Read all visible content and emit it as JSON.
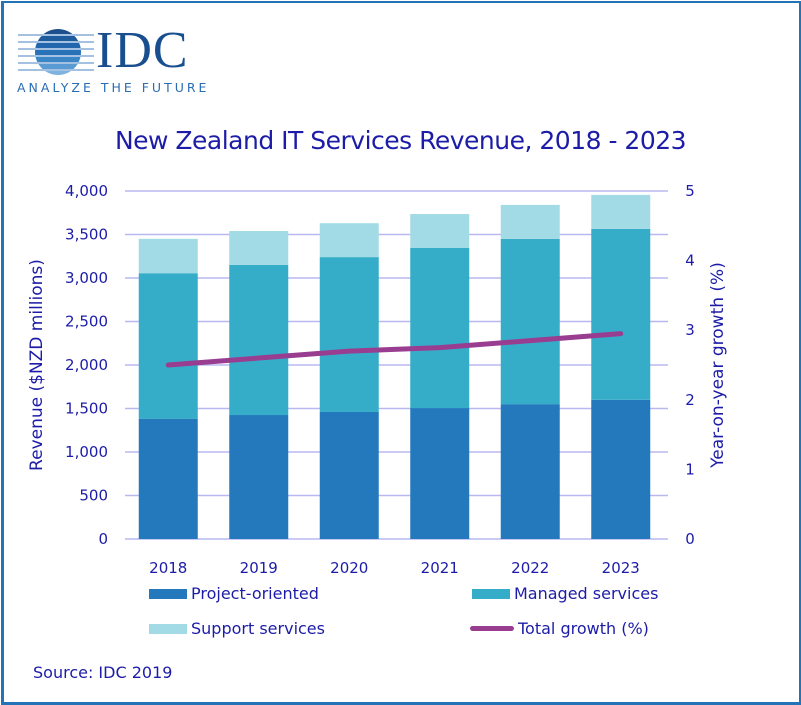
{
  "brand": {
    "name": "IDC",
    "tagline": "ANALYZE THE FUTURE",
    "logo_icon": "striped-globe-icon"
  },
  "source": "Source: IDC 2019",
  "colors": {
    "project": "#2479bd",
    "managed": "#36adc8",
    "support": "#a2dbe5",
    "growth": "#993d91",
    "grid": "#b8b8f0",
    "text": "#1c1ca8",
    "border": "#2473b6"
  },
  "chart_data": {
    "type": "bar",
    "stacked": true,
    "title": "New Zealand IT Services Revenue, 2018 - 2023",
    "xlabel": "",
    "ylabel": "Revenue ($NZD millions)",
    "y2label": "Year-on-year growth (%)",
    "categories": [
      "2018",
      "2019",
      "2020",
      "2021",
      "2022",
      "2023"
    ],
    "ylim": [
      0,
      4000
    ],
    "y2lim": [
      0,
      5
    ],
    "yticks": [
      "0",
      "500",
      "1,000",
      "1,500",
      "2,000",
      "2,500",
      "3,000",
      "3,500",
      "4,000"
    ],
    "ytick_values": [
      0,
      500,
      1000,
      1500,
      2000,
      2500,
      3000,
      3500,
      4000
    ],
    "y2ticks": [
      "0",
      "1",
      "2",
      "3",
      "4",
      "5"
    ],
    "y2tick_values": [
      0,
      1,
      2,
      3,
      4,
      5
    ],
    "grid": true,
    "legend_position": "bottom",
    "series": [
      {
        "name": "Project-oriented",
        "type": "bar",
        "axis": "left",
        "values": [
          1380,
          1425,
          1460,
          1505,
          1550,
          1600
        ]
      },
      {
        "name": "Managed services",
        "type": "bar",
        "axis": "left",
        "values": [
          1675,
          1725,
          1780,
          1840,
          1900,
          1965
        ]
      },
      {
        "name": "Support services",
        "type": "bar",
        "axis": "left",
        "values": [
          395,
          390,
          390,
          390,
          390,
          390
        ]
      },
      {
        "name": "Total growth (%)",
        "type": "line",
        "axis": "right",
        "values": [
          2.5,
          2.6,
          2.7,
          2.75,
          2.85,
          2.95
        ]
      }
    ]
  }
}
